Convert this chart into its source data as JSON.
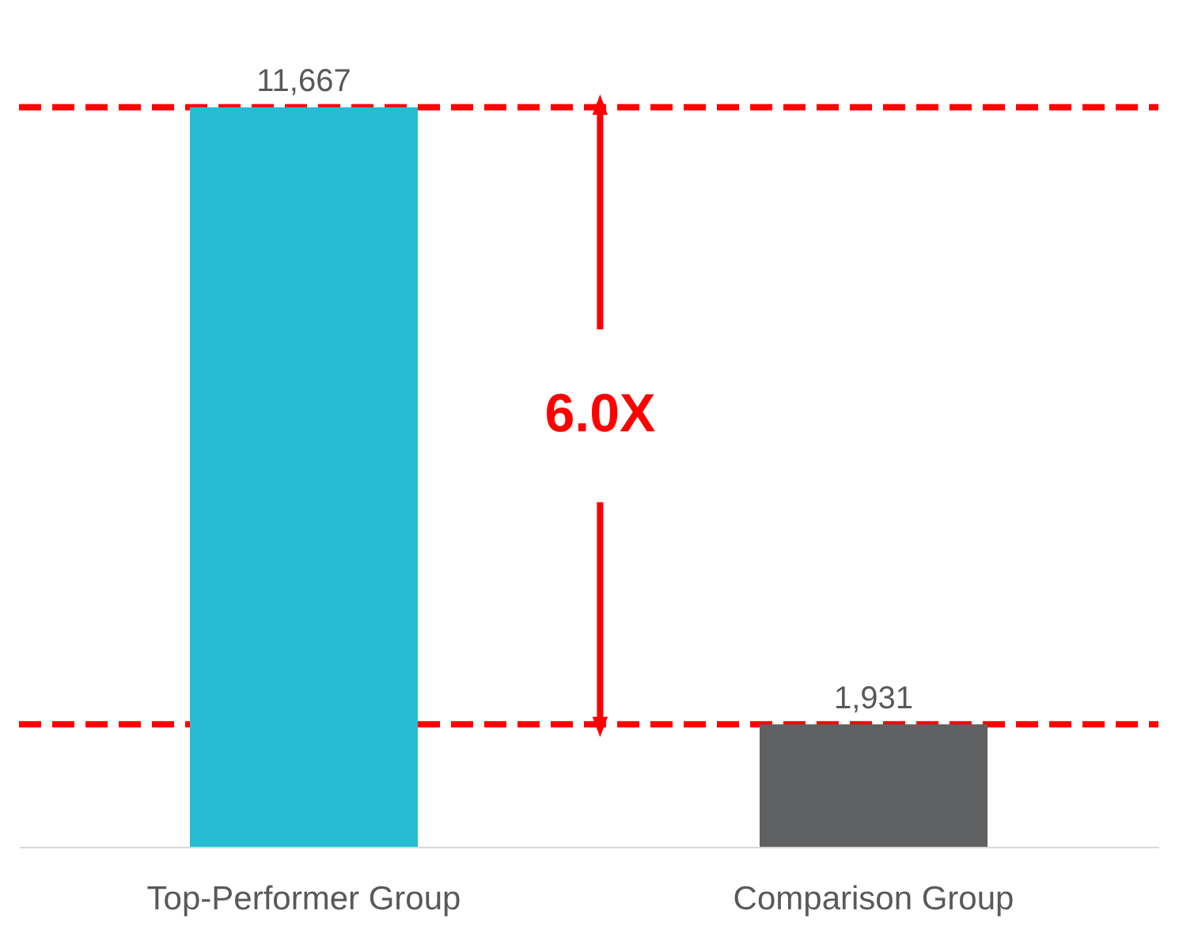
{
  "chart_data": {
    "type": "bar",
    "categories": [
      "Top-Performer Group",
      "Comparison Group"
    ],
    "values": [
      11667,
      1931
    ],
    "value_labels": [
      "11,667",
      "1,931"
    ],
    "colors": [
      "#25bcd4",
      "#5f6062"
    ],
    "annotations": [
      "6.0X"
    ],
    "ref_lines": [
      {
        "axis": "y",
        "value": 11667,
        "color": "#ff0000",
        "line_style": "dashed"
      },
      {
        "axis": "y",
        "value": 1931,
        "color": "#ff0000",
        "line_style": "dashed"
      }
    ],
    "grid": false
  }
}
